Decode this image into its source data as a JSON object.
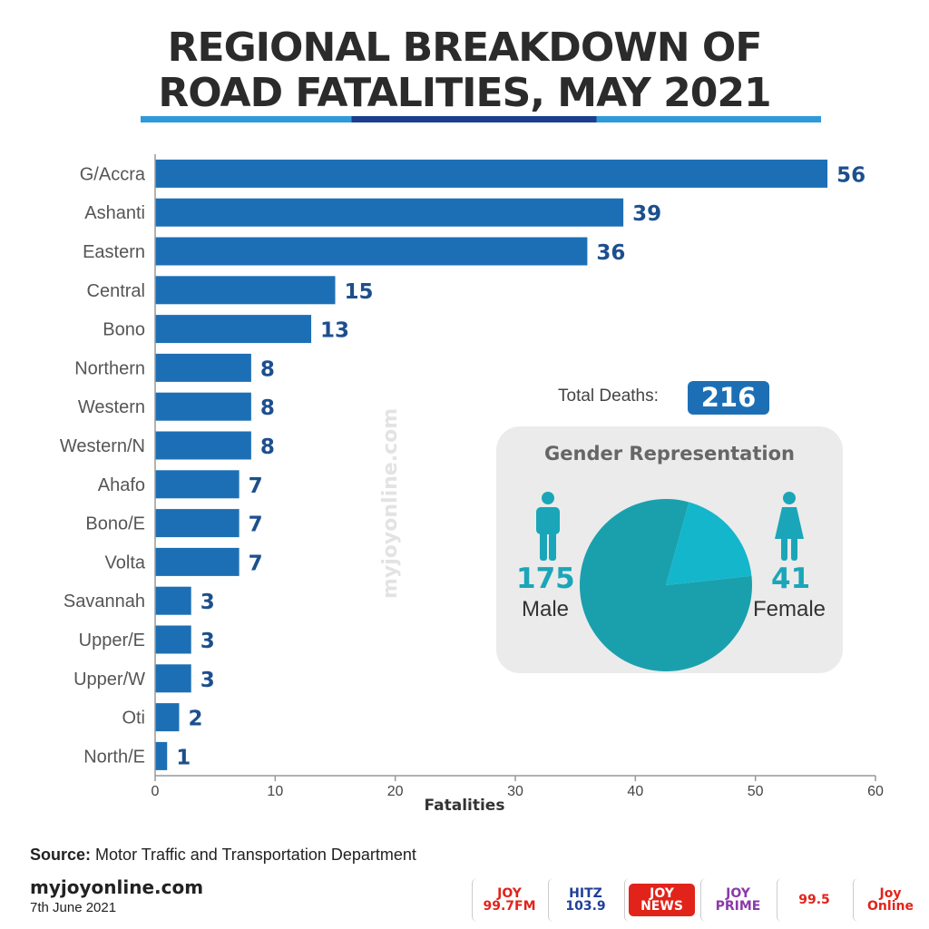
{
  "header": {
    "title_line1": "REGIONAL BREAKDOWN OF",
    "title_line2": "ROAD FATALITIES, MAY 2021"
  },
  "chart_data": {
    "type": "bar",
    "orientation": "horizontal",
    "categories": [
      "G/Accra",
      "Ashanti",
      "Eastern",
      "Central",
      "Bono",
      "Northern",
      "Western",
      "Western/N",
      "Ahafo",
      "Bono/E",
      "Volta",
      "Savannah",
      "Upper/E",
      "Upper/W",
      "Oti",
      "North/E"
    ],
    "values": [
      56,
      39,
      36,
      15,
      13,
      8,
      8,
      8,
      7,
      7,
      7,
      3,
      3,
      3,
      2,
      1
    ],
    "xlabel": "Fatalities",
    "xlim": [
      0,
      60
    ],
    "xticks": [
      0,
      10,
      20,
      30,
      40,
      50,
      60
    ],
    "bar_color": "#1d6fb5",
    "label_color": "#1d4f8e",
    "grid": false
  },
  "watermark": "myjoyonline.com",
  "total": {
    "label": "Total Deaths:",
    "value": "216"
  },
  "gender": {
    "title": "Gender Representation",
    "male_value": "175",
    "male_label": "Male",
    "female_value": "41",
    "female_label": "Female",
    "pie_data": {
      "type": "pie",
      "categories": [
        "Male",
        "Female"
      ],
      "values": [
        175,
        41
      ],
      "colors": [
        "#1aa0ad",
        "#14b6cc"
      ]
    },
    "icon_color": "#1aa6b8"
  },
  "source": {
    "label": "Source:",
    "text": "Motor Traffic and Transportation Department"
  },
  "footer": {
    "site": "myjoyonline.com",
    "date": "7th June 2021",
    "logos": [
      {
        "name": "joy-997-fm-logo",
        "text": "JOY 99.7FM",
        "bg": "#ffffff",
        "fg": "#e2231a"
      },
      {
        "name": "hitz-1039-logo",
        "text": "HITZ 103.9",
        "bg": "#ffffff",
        "fg": "#1f3f99"
      },
      {
        "name": "joy-news-logo",
        "text": "JOY NEWS",
        "bg": "#e2231a",
        "fg": "#ffffff"
      },
      {
        "name": "joy-prime-logo",
        "text": "JOY PRIME",
        "bg": "#ffffff",
        "fg": "#8a3aa8"
      },
      {
        "name": "adom-fm-logo",
        "text": "99.5",
        "bg": "#ffffff",
        "fg": "#e2231a"
      },
      {
        "name": "joy-online-logo",
        "text": "Joy Online",
        "bg": "#ffffff",
        "fg": "#e2231a"
      }
    ]
  }
}
